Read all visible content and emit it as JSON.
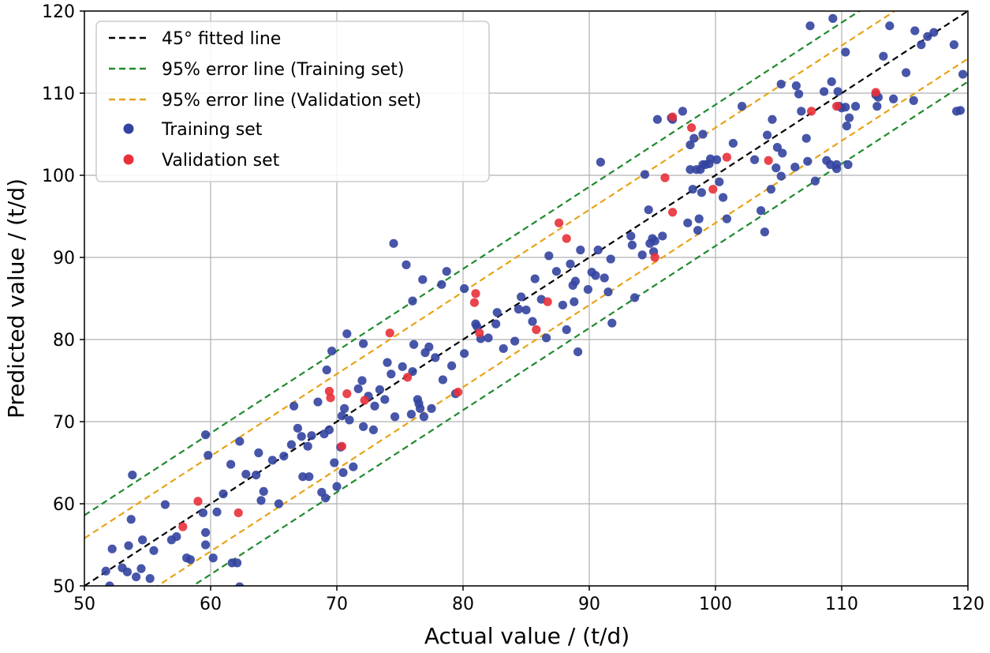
{
  "chart_data": {
    "type": "scatter",
    "title": "",
    "xlabel": "Actual value / (t/d)",
    "ylabel": "Predicted value / (t/d)",
    "xlim": [
      50,
      120
    ],
    "ylim": [
      50,
      120
    ],
    "xticks": [
      50,
      60,
      70,
      80,
      90,
      100,
      110,
      120
    ],
    "yticks": [
      50,
      60,
      70,
      80,
      90,
      100,
      110,
      120
    ],
    "grid": true,
    "legend_position": "top-left",
    "lines": [
      {
        "name": "45° fitted line",
        "color": "#000000",
        "offsets": [
          0
        ]
      },
      {
        "name": "95% error line (Training set)",
        "color": "#1f8a2e",
        "offsets": [
          8.6,
          -8.6
        ]
      },
      {
        "name": "95% error line (Validation set)",
        "color": "#e8a317",
        "offsets": [
          5.8,
          -5.8
        ]
      }
    ],
    "series": [
      {
        "name": "Training set",
        "color": "#3344a0",
        "points": [
          [
            51.7,
            51.8
          ],
          [
            52.2,
            54.5
          ],
          [
            52.0,
            50.0
          ],
          [
            53.0,
            52.2
          ],
          [
            53.4,
            51.7
          ],
          [
            53.5,
            54.9
          ],
          [
            53.7,
            58.1
          ],
          [
            53.8,
            63.5
          ],
          [
            54.1,
            51.1
          ],
          [
            54.5,
            52.1
          ],
          [
            54.6,
            55.6
          ],
          [
            55.2,
            50.9
          ],
          [
            55.5,
            54.3
          ],
          [
            56.4,
            59.9
          ],
          [
            56.9,
            55.6
          ],
          [
            57.3,
            56.0
          ],
          [
            58.1,
            53.4
          ],
          [
            58.4,
            53.2
          ],
          [
            59.4,
            58.9
          ],
          [
            59.6,
            56.5
          ],
          [
            59.6,
            55.0
          ],
          [
            59.6,
            68.4
          ],
          [
            59.8,
            65.9
          ],
          [
            60.2,
            53.4
          ],
          [
            60.5,
            59.0
          ],
          [
            61.0,
            61.2
          ],
          [
            61.6,
            64.8
          ],
          [
            61.7,
            52.8
          ],
          [
            62.1,
            52.8
          ],
          [
            62.3,
            49.9
          ],
          [
            62.3,
            67.6
          ],
          [
            62.8,
            63.6
          ],
          [
            63.6,
            63.5
          ],
          [
            63.8,
            66.2
          ],
          [
            64.0,
            60.4
          ],
          [
            64.2,
            61.5
          ],
          [
            64.9,
            65.3
          ],
          [
            65.4,
            60.0
          ],
          [
            65.8,
            65.8
          ],
          [
            66.4,
            67.2
          ],
          [
            66.6,
            71.9
          ],
          [
            66.9,
            69.2
          ],
          [
            67.2,
            68.2
          ],
          [
            67.3,
            63.3
          ],
          [
            67.7,
            67.0
          ],
          [
            67.8,
            63.3
          ],
          [
            68.0,
            68.3
          ],
          [
            68.5,
            72.4
          ],
          [
            68.8,
            61.4
          ],
          [
            69.0,
            68.5
          ],
          [
            69.1,
            60.7
          ],
          [
            69.2,
            76.3
          ],
          [
            69.4,
            69.0
          ],
          [
            69.6,
            78.6
          ],
          [
            69.8,
            65.0
          ],
          [
            70.0,
            62.1
          ],
          [
            70.3,
            66.9
          ],
          [
            70.4,
            70.7
          ],
          [
            70.5,
            63.8
          ],
          [
            70.6,
            71.6
          ],
          [
            70.8,
            80.7
          ],
          [
            71.0,
            70.2
          ],
          [
            71.3,
            64.5
          ],
          [
            71.7,
            74.0
          ],
          [
            72.0,
            75.0
          ],
          [
            72.1,
            69.4
          ],
          [
            72.1,
            79.5
          ],
          [
            72.5,
            73.1
          ],
          [
            72.9,
            69.0
          ],
          [
            73.0,
            71.9
          ],
          [
            73.4,
            73.9
          ],
          [
            73.8,
            72.7
          ],
          [
            74.0,
            77.2
          ],
          [
            74.3,
            75.8
          ],
          [
            74.5,
            91.7
          ],
          [
            74.6,
            70.6
          ],
          [
            75.2,
            76.7
          ],
          [
            75.5,
            89.1
          ],
          [
            75.9,
            70.9
          ],
          [
            76.0,
            76.1
          ],
          [
            76.0,
            84.7
          ],
          [
            76.1,
            79.4
          ],
          [
            76.4,
            72.7
          ],
          [
            76.5,
            72.2
          ],
          [
            76.6,
            71.6
          ],
          [
            76.8,
            87.3
          ],
          [
            76.9,
            70.6
          ],
          [
            77.0,
            78.4
          ],
          [
            77.3,
            79.1
          ],
          [
            77.5,
            71.6
          ],
          [
            77.8,
            77.8
          ],
          [
            78.3,
            86.7
          ],
          [
            78.4,
            75.1
          ],
          [
            78.7,
            88.3
          ],
          [
            79.1,
            76.8
          ],
          [
            79.4,
            73.4
          ],
          [
            80.1,
            86.2
          ],
          [
            80.1,
            78.3
          ],
          [
            81.0,
            81.9
          ],
          [
            81.1,
            81.6
          ],
          [
            81.4,
            80.1
          ],
          [
            82.0,
            80.2
          ],
          [
            82.6,
            81.9
          ],
          [
            82.7,
            83.3
          ],
          [
            83.2,
            78.9
          ],
          [
            84.1,
            79.8
          ],
          [
            84.4,
            83.7
          ],
          [
            84.6,
            85.2
          ],
          [
            85.0,
            83.6
          ],
          [
            85.5,
            82.2
          ],
          [
            85.7,
            87.4
          ],
          [
            86.2,
            84.9
          ],
          [
            86.6,
            80.2
          ],
          [
            86.8,
            90.2
          ],
          [
            87.4,
            88.3
          ],
          [
            87.9,
            84.2
          ],
          [
            88.2,
            81.2
          ],
          [
            88.5,
            89.2
          ],
          [
            88.7,
            86.6
          ],
          [
            88.8,
            84.6
          ],
          [
            88.9,
            87.1
          ],
          [
            89.1,
            78.5
          ],
          [
            89.3,
            90.9
          ],
          [
            89.9,
            86.1
          ],
          [
            90.2,
            88.2
          ],
          [
            90.5,
            87.8
          ],
          [
            90.7,
            90.9
          ],
          [
            90.9,
            101.6
          ],
          [
            91.2,
            87.5
          ],
          [
            91.5,
            85.8
          ],
          [
            91.7,
            89.8
          ],
          [
            91.8,
            82.0
          ],
          [
            93.3,
            92.6
          ],
          [
            93.4,
            91.5
          ],
          [
            93.6,
            85.1
          ],
          [
            94.2,
            90.3
          ],
          [
            94.4,
            100.1
          ],
          [
            94.7,
            95.8
          ],
          [
            94.8,
            91.7
          ],
          [
            95.0,
            92.3
          ],
          [
            95.1,
            90.7
          ],
          [
            95.2,
            92.0
          ],
          [
            95.4,
            106.8
          ],
          [
            95.8,
            92.6
          ],
          [
            96.5,
            107.0
          ],
          [
            96.6,
            106.8
          ],
          [
            97.4,
            107.8
          ],
          [
            97.8,
            94.2
          ],
          [
            98.0,
            100.7
          ],
          [
            98.0,
            103.7
          ],
          [
            98.2,
            98.3
          ],
          [
            98.3,
            104.5
          ],
          [
            98.5,
            100.7
          ],
          [
            98.6,
            93.3
          ],
          [
            98.7,
            94.7
          ],
          [
            98.8,
            100.7
          ],
          [
            98.9,
            97.9
          ],
          [
            99.0,
            101.3
          ],
          [
            99.0,
            105.0
          ],
          [
            99.2,
            101.3
          ],
          [
            99.5,
            101.4
          ],
          [
            99.6,
            102.0
          ],
          [
            100.1,
            101.9
          ],
          [
            100.3,
            99.2
          ],
          [
            100.6,
            97.3
          ],
          [
            100.9,
            94.7
          ],
          [
            101.4,
            103.9
          ],
          [
            102.1,
            108.4
          ],
          [
            103.1,
            101.9
          ],
          [
            103.6,
            95.7
          ],
          [
            103.9,
            93.1
          ],
          [
            104.1,
            104.9
          ],
          [
            104.4,
            98.3
          ],
          [
            104.5,
            106.8
          ],
          [
            104.8,
            100.9
          ],
          [
            104.9,
            103.4
          ],
          [
            105.2,
            111.1
          ],
          [
            105.2,
            99.9
          ],
          [
            105.3,
            102.7
          ],
          [
            106.3,
            101.0
          ],
          [
            106.4,
            110.9
          ],
          [
            106.6,
            109.9
          ],
          [
            106.8,
            107.8
          ],
          [
            107.2,
            104.5
          ],
          [
            107.3,
            101.7
          ],
          [
            107.5,
            118.2
          ],
          [
            107.9,
            99.3
          ],
          [
            108.6,
            110.2
          ],
          [
            108.8,
            101.8
          ],
          [
            109.1,
            101.3
          ],
          [
            109.2,
            111.4
          ],
          [
            109.3,
            119.1
          ],
          [
            109.6,
            100.8
          ],
          [
            109.6,
            101.3
          ],
          [
            109.7,
            110.2
          ],
          [
            109.8,
            108.4
          ],
          [
            110.0,
            108.2
          ],
          [
            110.3,
            108.3
          ],
          [
            110.3,
            115.0
          ],
          [
            110.4,
            106.0
          ],
          [
            110.5,
            101.3
          ],
          [
            110.6,
            107.0
          ],
          [
            111.1,
            108.4
          ],
          [
            112.7,
            109.8
          ],
          [
            112.8,
            108.4
          ],
          [
            112.9,
            109.5
          ],
          [
            113.3,
            114.5
          ],
          [
            113.8,
            118.2
          ],
          [
            114.1,
            109.3
          ],
          [
            115.1,
            112.5
          ],
          [
            115.7,
            109.1
          ],
          [
            115.8,
            117.6
          ],
          [
            116.3,
            115.9
          ],
          [
            116.8,
            116.9
          ],
          [
            117.3,
            117.4
          ],
          [
            118.9,
            115.9
          ],
          [
            119.1,
            107.8
          ],
          [
            119.4,
            107.9
          ],
          [
            119.6,
            112.3
          ]
        ]
      },
      {
        "name": "Validation set",
        "color": "#e8303a",
        "points": [
          [
            57.8,
            57.2
          ],
          [
            59.0,
            60.3
          ],
          [
            62.2,
            58.9
          ],
          [
            69.4,
            73.7
          ],
          [
            69.5,
            72.9
          ],
          [
            70.4,
            67.0
          ],
          [
            70.8,
            73.4
          ],
          [
            72.2,
            72.6
          ],
          [
            74.2,
            80.8
          ],
          [
            75.6,
            75.4
          ],
          [
            79.6,
            73.6
          ],
          [
            80.9,
            84.5
          ],
          [
            81.0,
            85.6
          ],
          [
            81.3,
            80.8
          ],
          [
            85.8,
            81.2
          ],
          [
            86.7,
            84.6
          ],
          [
            87.6,
            94.2
          ],
          [
            88.2,
            92.3
          ],
          [
            95.2,
            90.0
          ],
          [
            96.0,
            99.7
          ],
          [
            96.6,
            107.1
          ],
          [
            96.6,
            95.5
          ],
          [
            98.1,
            105.8
          ],
          [
            99.8,
            98.3
          ],
          [
            100.9,
            102.2
          ],
          [
            104.2,
            101.8
          ],
          [
            107.6,
            107.8
          ],
          [
            109.6,
            108.4
          ],
          [
            112.7,
            110.1
          ]
        ]
      }
    ]
  }
}
